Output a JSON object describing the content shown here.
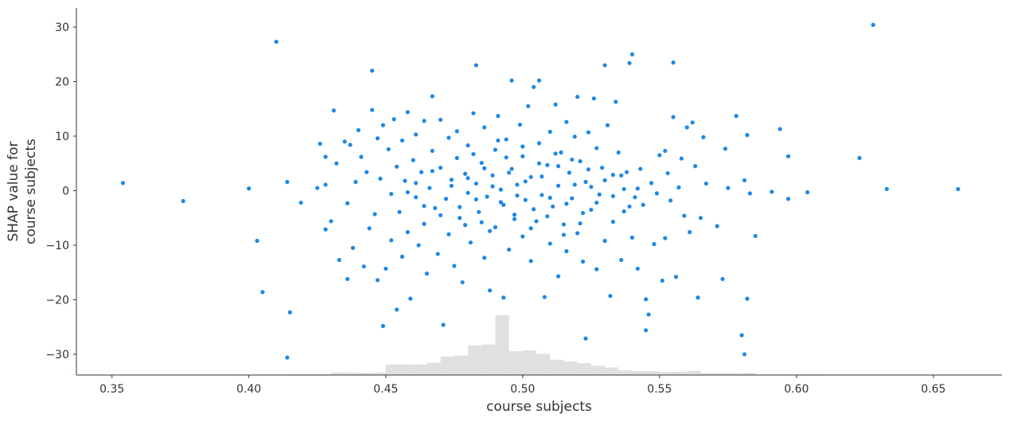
{
  "chart_data": {
    "type": "scatter",
    "title": "",
    "xlabel": "course subjects",
    "ylabel_lines": [
      "SHAP value for",
      "course subjects"
    ],
    "xlim": [
      0.337,
      0.675
    ],
    "ylim": [
      -33.8,
      33.5
    ],
    "x_ticks": [
      0.35,
      0.4,
      0.45,
      0.5,
      0.55,
      0.6,
      0.65
    ],
    "x_tick_labels": [
      "0.35",
      "0.40",
      "0.45",
      "0.50",
      "0.55",
      "0.60",
      "0.65"
    ],
    "y_ticks": [
      -30,
      -20,
      -10,
      0,
      10,
      20,
      30
    ],
    "y_tick_labels": [
      "−30",
      "−20",
      "−10",
      "0",
      "10",
      "20",
      "30"
    ],
    "grid": false,
    "point_color": "#1e88e5",
    "histogram_color": "#e0e0e0",
    "histogram": {
      "bin_edges": [
        0.335,
        0.34,
        0.345,
        0.35,
        0.355,
        0.36,
        0.365,
        0.37,
        0.375,
        0.38,
        0.385,
        0.39,
        0.395,
        0.4,
        0.405,
        0.41,
        0.415,
        0.42,
        0.425,
        0.43,
        0.435,
        0.44,
        0.445,
        0.45,
        0.455,
        0.46,
        0.465,
        0.47,
        0.475,
        0.48,
        0.485,
        0.49,
        0.495,
        0.5,
        0.505,
        0.51,
        0.515,
        0.52,
        0.525,
        0.53,
        0.535,
        0.54,
        0.545,
        0.55,
        0.555,
        0.56,
        0.565,
        0.57,
        0.575,
        0.58,
        0.585,
        0.59,
        0.595,
        0.6,
        0.605,
        0.61,
        0.615,
        0.62,
        0.625,
        0.63,
        0.635,
        0.64,
        0.645,
        0.65,
        0.655,
        0.66,
        0.665
      ],
      "counts": [
        1,
        0,
        0,
        1,
        1,
        0,
        0,
        1,
        1,
        0,
        0,
        0,
        0,
        1,
        1,
        1,
        2,
        2,
        2,
        6,
        6,
        5,
        6,
        25,
        25,
        25,
        29,
        44,
        46,
        70,
        72,
        141,
        56,
        58,
        50,
        36,
        32,
        28,
        22,
        18,
        11,
        9,
        9,
        7,
        8,
        10,
        4,
        4,
        4,
        5,
        1,
        1,
        1,
        2,
        2,
        1,
        1,
        1,
        1,
        1,
        1,
        1,
        1,
        1,
        1,
        1
      ],
      "note_scale": "relative"
    },
    "points": [
      {
        "x": 0.354,
        "y": 1.4
      },
      {
        "x": 0.376,
        "y": -1.9
      },
      {
        "x": 0.4,
        "y": 0.4
      },
      {
        "x": 0.403,
        "y": -9.2
      },
      {
        "x": 0.405,
        "y": -18.6
      },
      {
        "x": 0.41,
        "y": 27.3
      },
      {
        "x": 0.414,
        "y": 1.6
      },
      {
        "x": 0.414,
        "y": -30.6
      },
      {
        "x": 0.415,
        "y": -22.3
      },
      {
        "x": 0.419,
        "y": -2.2
      },
      {
        "x": 0.425,
        "y": 0.5
      },
      {
        "x": 0.426,
        "y": 8.6
      },
      {
        "x": 0.428,
        "y": 6.2
      },
      {
        "x": 0.428,
        "y": 1.1
      },
      {
        "x": 0.428,
        "y": -7.1
      },
      {
        "x": 0.43,
        "y": -5.6
      },
      {
        "x": 0.431,
        "y": 14.7
      },
      {
        "x": 0.432,
        "y": 5.0
      },
      {
        "x": 0.433,
        "y": -12.7
      },
      {
        "x": 0.435,
        "y": 9.0
      },
      {
        "x": 0.436,
        "y": -16.2
      },
      {
        "x": 0.436,
        "y": -2.3
      },
      {
        "x": 0.437,
        "y": 8.4
      },
      {
        "x": 0.438,
        "y": -10.5
      },
      {
        "x": 0.439,
        "y": 1.6
      },
      {
        "x": 0.44,
        "y": 11.1
      },
      {
        "x": 0.441,
        "y": 6.2
      },
      {
        "x": 0.442,
        "y": -13.9
      },
      {
        "x": 0.443,
        "y": 3.4
      },
      {
        "x": 0.444,
        "y": -6.9
      },
      {
        "x": 0.445,
        "y": 22.0
      },
      {
        "x": 0.445,
        "y": 14.8
      },
      {
        "x": 0.446,
        "y": -4.3
      },
      {
        "x": 0.447,
        "y": 9.6
      },
      {
        "x": 0.447,
        "y": -16.4
      },
      {
        "x": 0.448,
        "y": 2.2
      },
      {
        "x": 0.449,
        "y": 12.0
      },
      {
        "x": 0.449,
        "y": -24.8
      },
      {
        "x": 0.45,
        "y": -14.3
      },
      {
        "x": 0.451,
        "y": 7.6
      },
      {
        "x": 0.452,
        "y": -0.6
      },
      {
        "x": 0.452,
        "y": -9.1
      },
      {
        "x": 0.453,
        "y": 13.1
      },
      {
        "x": 0.454,
        "y": 4.4
      },
      {
        "x": 0.454,
        "y": -21.8
      },
      {
        "x": 0.455,
        "y": -3.9
      },
      {
        "x": 0.456,
        "y": 9.2
      },
      {
        "x": 0.456,
        "y": -12.1
      },
      {
        "x": 0.457,
        "y": 1.8
      },
      {
        "x": 0.458,
        "y": 14.4
      },
      {
        "x": 0.458,
        "y": -7.6
      },
      {
        "x": 0.459,
        "y": -19.8
      },
      {
        "x": 0.46,
        "y": 5.6
      },
      {
        "x": 0.461,
        "y": -1.2
      },
      {
        "x": 0.461,
        "y": 10.3
      },
      {
        "x": 0.462,
        "y": -10.0
      },
      {
        "x": 0.463,
        "y": 3.4
      },
      {
        "x": 0.464,
        "y": -6.1
      },
      {
        "x": 0.464,
        "y": 12.8
      },
      {
        "x": 0.465,
        "y": -15.2
      },
      {
        "x": 0.466,
        "y": 0.5
      },
      {
        "x": 0.467,
        "y": 7.3
      },
      {
        "x": 0.467,
        "y": 17.3
      },
      {
        "x": 0.468,
        "y": -3.2
      },
      {
        "x": 0.469,
        "y": -11.6
      },
      {
        "x": 0.47,
        "y": 4.2
      },
      {
        "x": 0.47,
        "y": 13.0
      },
      {
        "x": 0.471,
        "y": -24.6
      },
      {
        "x": 0.472,
        "y": -1.5
      },
      {
        "x": 0.473,
        "y": 9.7
      },
      {
        "x": 0.473,
        "y": -8.0
      },
      {
        "x": 0.474,
        "y": 2.0
      },
      {
        "x": 0.475,
        "y": -13.8
      },
      {
        "x": 0.476,
        "y": 6.0
      },
      {
        "x": 0.476,
        "y": 10.9
      },
      {
        "x": 0.477,
        "y": -5.0
      },
      {
        "x": 0.478,
        "y": -16.8
      },
      {
        "x": 0.479,
        "y": 3.1
      },
      {
        "x": 0.48,
        "y": -0.4
      },
      {
        "x": 0.48,
        "y": 8.3
      },
      {
        "x": 0.481,
        "y": -9.5
      },
      {
        "x": 0.482,
        "y": 14.2
      },
      {
        "x": 0.483,
        "y": 1.3
      },
      {
        "x": 0.483,
        "y": 23.0
      },
      {
        "x": 0.484,
        "y": -3.9
      },
      {
        "x": 0.485,
        "y": 5.1
      },
      {
        "x": 0.486,
        "y": -12.3
      },
      {
        "x": 0.486,
        "y": 11.6
      },
      {
        "x": 0.487,
        "y": -1.1
      },
      {
        "x": 0.488,
        "y": -18.3
      },
      {
        "x": 0.489,
        "y": 2.8
      },
      {
        "x": 0.49,
        "y": 7.5
      },
      {
        "x": 0.49,
        "y": -6.7
      },
      {
        "x": 0.491,
        "y": 13.7
      },
      {
        "x": 0.492,
        "y": 0.2
      },
      {
        "x": 0.493,
        "y": -19.6
      },
      {
        "x": 0.493,
        "y": -2.6
      },
      {
        "x": 0.494,
        "y": 9.4
      },
      {
        "x": 0.495,
        "y": -10.8
      },
      {
        "x": 0.496,
        "y": 20.2
      },
      {
        "x": 0.496,
        "y": 4.0
      },
      {
        "x": 0.497,
        "y": -4.4
      },
      {
        "x": 0.498,
        "y": 1.1
      },
      {
        "x": 0.499,
        "y": 12.1
      },
      {
        "x": 0.5,
        "y": -8.4
      },
      {
        "x": 0.5,
        "y": 6.3
      },
      {
        "x": 0.501,
        "y": -1.7
      },
      {
        "x": 0.502,
        "y": 15.5
      },
      {
        "x": 0.503,
        "y": -12.9
      },
      {
        "x": 0.503,
        "y": 2.5
      },
      {
        "x": 0.504,
        "y": 19.0
      },
      {
        "x": 0.505,
        "y": -5.6
      },
      {
        "x": 0.506,
        "y": 8.7
      },
      {
        "x": 0.506,
        "y": 20.2
      },
      {
        "x": 0.507,
        "y": -0.8
      },
      {
        "x": 0.508,
        "y": -19.5
      },
      {
        "x": 0.509,
        "y": 4.7
      },
      {
        "x": 0.51,
        "y": -9.7
      },
      {
        "x": 0.51,
        "y": 10.8
      },
      {
        "x": 0.511,
        "y": -2.9
      },
      {
        "x": 0.512,
        "y": 15.8
      },
      {
        "x": 0.513,
        "y": 0.9
      },
      {
        "x": 0.513,
        "y": -15.7
      },
      {
        "x": 0.514,
        "y": 7.0
      },
      {
        "x": 0.515,
        "y": -6.2
      },
      {
        "x": 0.516,
        "y": 12.6
      },
      {
        "x": 0.516,
        "y": -11.1
      },
      {
        "x": 0.517,
        "y": 3.3
      },
      {
        "x": 0.518,
        "y": -1.4
      },
      {
        "x": 0.519,
        "y": 9.9
      },
      {
        "x": 0.52,
        "y": -7.8
      },
      {
        "x": 0.52,
        "y": 17.2
      },
      {
        "x": 0.521,
        "y": 5.4
      },
      {
        "x": 0.522,
        "y": -13.0
      },
      {
        "x": 0.523,
        "y": 1.6
      },
      {
        "x": 0.523,
        "y": -27.1
      },
      {
        "x": 0.524,
        "y": 10.7
      },
      {
        "x": 0.525,
        "y": -3.5
      },
      {
        "x": 0.526,
        "y": 16.9
      },
      {
        "x": 0.527,
        "y": 7.8
      },
      {
        "x": 0.527,
        "y": -14.4
      },
      {
        "x": 0.528,
        "y": -0.7
      },
      {
        "x": 0.529,
        "y": 4.2
      },
      {
        "x": 0.53,
        "y": -9.2
      },
      {
        "x": 0.53,
        "y": 23.0
      },
      {
        "x": 0.531,
        "y": 12.0
      },
      {
        "x": 0.532,
        "y": -19.3
      },
      {
        "x": 0.533,
        "y": 2.9
      },
      {
        "x": 0.533,
        "y": -5.7
      },
      {
        "x": 0.534,
        "y": 16.3
      },
      {
        "x": 0.535,
        "y": 7.0
      },
      {
        "x": 0.536,
        "y": -12.7
      },
      {
        "x": 0.537,
        "y": 0.3
      },
      {
        "x": 0.537,
        "y": -3.8
      },
      {
        "x": 0.538,
        "y": 3.4
      },
      {
        "x": 0.539,
        "y": 23.4
      },
      {
        "x": 0.54,
        "y": 25.0
      },
      {
        "x": 0.54,
        "y": -8.6
      },
      {
        "x": 0.541,
        "y": -1.2
      },
      {
        "x": 0.542,
        "y": -14.3
      },
      {
        "x": 0.543,
        "y": 4.0
      },
      {
        "x": 0.544,
        "y": -2.6
      },
      {
        "x": 0.545,
        "y": -19.9
      },
      {
        "x": 0.545,
        "y": -25.6
      },
      {
        "x": 0.546,
        "y": -22.7
      },
      {
        "x": 0.547,
        "y": 1.4
      },
      {
        "x": 0.548,
        "y": -9.8
      },
      {
        "x": 0.549,
        "y": -0.5
      },
      {
        "x": 0.55,
        "y": 6.5
      },
      {
        "x": 0.551,
        "y": -16.5
      },
      {
        "x": 0.552,
        "y": 7.3
      },
      {
        "x": 0.552,
        "y": -8.7
      },
      {
        "x": 0.553,
        "y": 3.2
      },
      {
        "x": 0.554,
        "y": -1.8
      },
      {
        "x": 0.555,
        "y": 23.5
      },
      {
        "x": 0.555,
        "y": 13.5
      },
      {
        "x": 0.556,
        "y": -15.8
      },
      {
        "x": 0.557,
        "y": 0.6
      },
      {
        "x": 0.558,
        "y": 5.9
      },
      {
        "x": 0.559,
        "y": -4.6
      },
      {
        "x": 0.56,
        "y": 11.6
      },
      {
        "x": 0.561,
        "y": -7.6
      },
      {
        "x": 0.562,
        "y": 12.5
      },
      {
        "x": 0.563,
        "y": 4.5
      },
      {
        "x": 0.564,
        "y": -19.6
      },
      {
        "x": 0.565,
        "y": -5.0
      },
      {
        "x": 0.566,
        "y": 9.8
      },
      {
        "x": 0.567,
        "y": 1.3
      },
      {
        "x": 0.571,
        "y": -6.5
      },
      {
        "x": 0.573,
        "y": -16.2
      },
      {
        "x": 0.574,
        "y": 7.7
      },
      {
        "x": 0.575,
        "y": 0.5
      },
      {
        "x": 0.578,
        "y": 13.7
      },
      {
        "x": 0.58,
        "y": -26.5
      },
      {
        "x": 0.581,
        "y": -30.0
      },
      {
        "x": 0.581,
        "y": 1.9
      },
      {
        "x": 0.582,
        "y": 10.2
      },
      {
        "x": 0.582,
        "y": -19.8
      },
      {
        "x": 0.583,
        "y": -0.5
      },
      {
        "x": 0.585,
        "y": -8.3
      },
      {
        "x": 0.591,
        "y": -0.2
      },
      {
        "x": 0.594,
        "y": 11.3
      },
      {
        "x": 0.597,
        "y": 6.3
      },
      {
        "x": 0.597,
        "y": -1.5
      },
      {
        "x": 0.604,
        "y": -0.3
      },
      {
        "x": 0.623,
        "y": 6.0
      },
      {
        "x": 0.628,
        "y": 30.4
      },
      {
        "x": 0.633,
        "y": 0.3
      },
      {
        "x": 0.659,
        "y": 0.3
      },
      {
        "x": 0.489,
        "y": 0.8
      },
      {
        "x": 0.492,
        "y": -2.1
      },
      {
        "x": 0.495,
        "y": 3.3
      },
      {
        "x": 0.498,
        "y": -0.9
      },
      {
        "x": 0.501,
        "y": 1.7
      },
      {
        "x": 0.504,
        "y": -3.4
      },
      {
        "x": 0.507,
        "y": 2.6
      },
      {
        "x": 0.51,
        "y": -1.3
      },
      {
        "x": 0.486,
        "y": 4.1
      },
      {
        "x": 0.483,
        "y": -1.6
      },
      {
        "x": 0.48,
        "y": 2.3
      },
      {
        "x": 0.477,
        "y": -3.0
      },
      {
        "x": 0.474,
        "y": 0.9
      },
      {
        "x": 0.513,
        "y": 4.5
      },
      {
        "x": 0.516,
        "y": -2.4
      },
      {
        "x": 0.519,
        "y": 1.1
      },
      {
        "x": 0.522,
        "y": -4.1
      },
      {
        "x": 0.525,
        "y": 0.7
      },
      {
        "x": 0.494,
        "y": 6.1
      },
      {
        "x": 0.497,
        "y": -5.2
      },
      {
        "x": 0.5,
        "y": 8.1
      },
      {
        "x": 0.503,
        "y": -6.9
      },
      {
        "x": 0.491,
        "y": 9.2
      },
      {
        "x": 0.488,
        "y": -7.4
      },
      {
        "x": 0.506,
        "y": 5.0
      },
      {
        "x": 0.509,
        "y": -4.7
      },
      {
        "x": 0.485,
        "y": -5.8
      },
      {
        "x": 0.482,
        "y": 6.7
      },
      {
        "x": 0.479,
        "y": -6.3
      },
      {
        "x": 0.512,
        "y": 6.8
      },
      {
        "x": 0.515,
        "y": -8.1
      },
      {
        "x": 0.518,
        "y": 5.7
      },
      {
        "x": 0.521,
        "y": -6.0
      },
      {
        "x": 0.524,
        "y": 3.9
      },
      {
        "x": 0.527,
        "y": -2.2
      },
      {
        "x": 0.47,
        "y": -4.5
      },
      {
        "x": 0.467,
        "y": 3.6
      },
      {
        "x": 0.464,
        "y": -2.8
      },
      {
        "x": 0.461,
        "y": 1.4
      },
      {
        "x": 0.458,
        "y": -0.3
      },
      {
        "x": 0.53,
        "y": 1.9
      },
      {
        "x": 0.533,
        "y": -1.0
      },
      {
        "x": 0.536,
        "y": 2.8
      },
      {
        "x": 0.539,
        "y": -2.9
      },
      {
        "x": 0.542,
        "y": 0.4
      }
    ]
  }
}
